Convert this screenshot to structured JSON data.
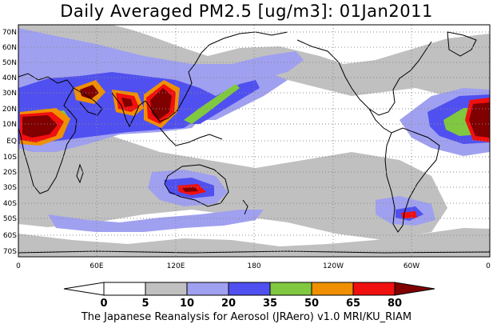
{
  "title": "Daily Averaged PM2.5 [ug/m3]: 01Jan2011",
  "lat_labels": [
    "70N",
    "60N",
    "50N",
    "40N",
    "30N",
    "20N",
    "10N",
    "EQ",
    "10S",
    "20S",
    "30S",
    "40S",
    "50S",
    "60S",
    "70S"
  ],
  "lon_labels": [
    "0",
    "60E",
    "120E",
    "180",
    "120W",
    "60W",
    "0"
  ],
  "colorbar": {
    "levels": [
      "0",
      "5",
      "10",
      "20",
      "35",
      "50",
      "65",
      "80"
    ],
    "colors": [
      "#ffffff",
      "#c0c0c0",
      "#a0a0f0",
      "#5050f0",
      "#80c840",
      "#f09000",
      "#f01010",
      "#800000"
    ]
  },
  "footer": "The Japanese Reanalysis for Aerosol (JRAero) v1.0 MRI/KU_RIAM"
}
